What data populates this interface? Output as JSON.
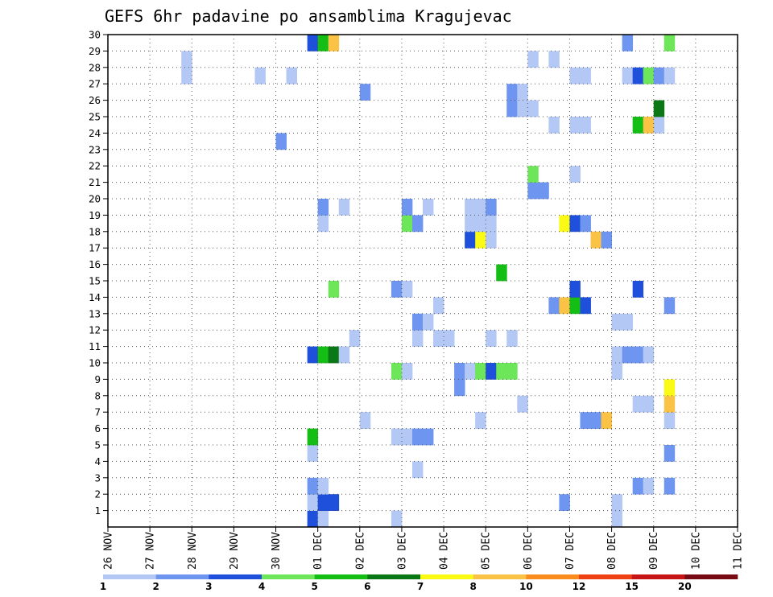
{
  "chart_data": {
    "type": "heatmap",
    "title": "GEFS 6hr padavine po ansamblima Kragujevac",
    "x_tick_labels": [
      "26 NOV",
      "27 NOV",
      "28 NOV",
      "29 NOV",
      "30 NOV",
      "01 DEC",
      "02 DEC",
      "03 DEC",
      "04 DEC",
      "05 DEC",
      "06 DEC",
      "07 DEC",
      "08 DEC",
      "09 DEC",
      "10 DEC",
      "11 DEC"
    ],
    "y_tick_labels": [
      "1",
      "2",
      "3",
      "4",
      "5",
      "6",
      "7",
      "8",
      "9",
      "10",
      "11",
      "12",
      "13",
      "14",
      "15",
      "16",
      "17",
      "18",
      "19",
      "20",
      "21",
      "22",
      "23",
      "24",
      "25",
      "26",
      "27",
      "28",
      "29",
      "30"
    ],
    "ylim": [
      0,
      30
    ],
    "x_steps_per_day": 4,
    "grid": true,
    "colorbar": {
      "labels": [
        "1",
        "2",
        "3",
        "4",
        "5",
        "6",
        "7",
        "8",
        "10",
        "12",
        "15",
        "20"
      ],
      "colors": [
        "#b4c8f5",
        "#6e96f0",
        "#1e50dc",
        "#6ee65a",
        "#14be14",
        "#0a7814",
        "#fafa14",
        "#fac346",
        "#fa8c1e",
        "#f04114",
        "#c81414",
        "#780a14"
      ]
    },
    "cells_format": "[step index from 26 NOV 00z, ensemble member, colour class 1-12]",
    "cells": [
      [
        7,
        28,
        1
      ],
      [
        7,
        29,
        1
      ],
      [
        14,
        28,
        1
      ],
      [
        16,
        24,
        2
      ],
      [
        17,
        28,
        1
      ],
      [
        19,
        1,
        3
      ],
      [
        19,
        2,
        1
      ],
      [
        19,
        3,
        2
      ],
      [
        19,
        5,
        1
      ],
      [
        19,
        6,
        5
      ],
      [
        19,
        11,
        3
      ],
      [
        19,
        30,
        3
      ],
      [
        20,
        1,
        1
      ],
      [
        20,
        2,
        3
      ],
      [
        20,
        3,
        1
      ],
      [
        20,
        11,
        5
      ],
      [
        20,
        19,
        1
      ],
      [
        20,
        20,
        2
      ],
      [
        20,
        30,
        5
      ],
      [
        21,
        11,
        6
      ],
      [
        21,
        15,
        4
      ],
      [
        21,
        2,
        3
      ],
      [
        21,
        30,
        8
      ],
      [
        22,
        11,
        1
      ],
      [
        22,
        20,
        1
      ],
      [
        23,
        12,
        1
      ],
      [
        24,
        7,
        1
      ],
      [
        24,
        27,
        2
      ],
      [
        27,
        1,
        1
      ],
      [
        27,
        6,
        1
      ],
      [
        27,
        10,
        4
      ],
      [
        27,
        15,
        2
      ],
      [
        28,
        6,
        1
      ],
      [
        28,
        10,
        1
      ],
      [
        28,
        15,
        1
      ],
      [
        28,
        19,
        4
      ],
      [
        28,
        20,
        2
      ],
      [
        29,
        4,
        1
      ],
      [
        29,
        6,
        2
      ],
      [
        29,
        12,
        1
      ],
      [
        29,
        13,
        2
      ],
      [
        29,
        19,
        2
      ],
      [
        30,
        6,
        2
      ],
      [
        30,
        13,
        1
      ],
      [
        30,
        20,
        1
      ],
      [
        31,
        12,
        1
      ],
      [
        31,
        14,
        1
      ],
      [
        32,
        12,
        1
      ],
      [
        33,
        9,
        2
      ],
      [
        33,
        10,
        2
      ],
      [
        34,
        10,
        1
      ],
      [
        34,
        18,
        3
      ],
      [
        34,
        19,
        1
      ],
      [
        34,
        20,
        1
      ],
      [
        35,
        10,
        4
      ],
      [
        35,
        18,
        7
      ],
      [
        35,
        19,
        1
      ],
      [
        35,
        20,
        1
      ],
      [
        35,
        7,
        1
      ],
      [
        36,
        10,
        3
      ],
      [
        36,
        18,
        1
      ],
      [
        36,
        19,
        1
      ],
      [
        36,
        20,
        2
      ],
      [
        36,
        12,
        1
      ],
      [
        37,
        10,
        4
      ],
      [
        37,
        16,
        5
      ],
      [
        38,
        10,
        4
      ],
      [
        38,
        12,
        1
      ],
      [
        38,
        26,
        2
      ],
      [
        38,
        27,
        2
      ],
      [
        39,
        8,
        1
      ],
      [
        39,
        26,
        1
      ],
      [
        39,
        27,
        1
      ],
      [
        40,
        21,
        2
      ],
      [
        40,
        22,
        4
      ],
      [
        40,
        26,
        1
      ],
      [
        40,
        29,
        1
      ],
      [
        41,
        21,
        2
      ],
      [
        42,
        14,
        2
      ],
      [
        42,
        25,
        1
      ],
      [
        42,
        29,
        1
      ],
      [
        43,
        2,
        2
      ],
      [
        43,
        14,
        8
      ],
      [
        43,
        19,
        7
      ],
      [
        44,
        22,
        1
      ],
      [
        44,
        28,
        1
      ],
      [
        44,
        14,
        5
      ],
      [
        44,
        15,
        3
      ],
      [
        44,
        19,
        3
      ],
      [
        44,
        25,
        1
      ],
      [
        45,
        7,
        2
      ],
      [
        45,
        14,
        3
      ],
      [
        45,
        19,
        2
      ],
      [
        45,
        25,
        1
      ],
      [
        45,
        28,
        1
      ],
      [
        46,
        7,
        2
      ],
      [
        46,
        18,
        8
      ],
      [
        47,
        7,
        8
      ],
      [
        47,
        18,
        2
      ],
      [
        48,
        1,
        1
      ],
      [
        48,
        2,
        1
      ],
      [
        48,
        10,
        1
      ],
      [
        48,
        11,
        1
      ],
      [
        48,
        13,
        1
      ],
      [
        49,
        11,
        2
      ],
      [
        49,
        13,
        1
      ],
      [
        49,
        28,
        1
      ],
      [
        49,
        30,
        2
      ],
      [
        50,
        3,
        2
      ],
      [
        50,
        8,
        1
      ],
      [
        50,
        11,
        2
      ],
      [
        50,
        15,
        3
      ],
      [
        50,
        25,
        5
      ],
      [
        50,
        28,
        3
      ],
      [
        51,
        3,
        1
      ],
      [
        51,
        8,
        1
      ],
      [
        51,
        11,
        1
      ],
      [
        51,
        25,
        8
      ],
      [
        51,
        28,
        4
      ],
      [
        52,
        25,
        1
      ],
      [
        52,
        26,
        6
      ],
      [
        52,
        28,
        2
      ],
      [
        53,
        3,
        2
      ],
      [
        53,
        5,
        2
      ],
      [
        53,
        7,
        1
      ],
      [
        53,
        8,
        8
      ],
      [
        53,
        9,
        7
      ],
      [
        53,
        14,
        2
      ],
      [
        53,
        28,
        1
      ],
      [
        53,
        30,
        4
      ]
    ]
  }
}
